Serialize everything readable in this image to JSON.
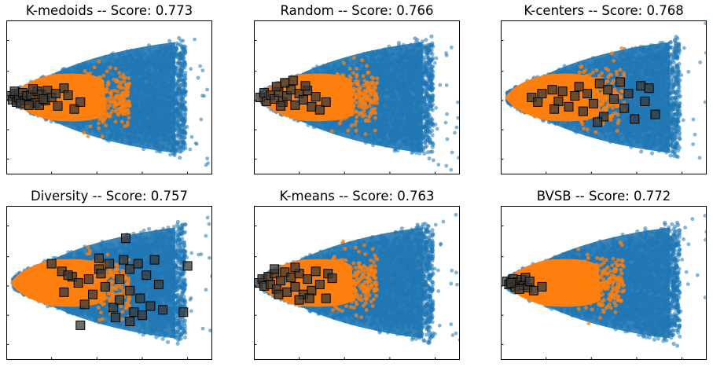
{
  "figure": {
    "background": "#ffffff"
  },
  "colors": {
    "unlabeled": "#1f77b4",
    "region": "#ff7f0e",
    "selected_fill": "#3a3a3a",
    "selected_edge": "#000000"
  },
  "chart_data": [
    {
      "type": "scatter",
      "title": "K-medoids -- Score: 0.773",
      "xlim": [
        0,
        1
      ],
      "ylim": [
        -1,
        1
      ],
      "orange_extent": 0.5,
      "selected": [
        [
          0.02,
          0.02
        ],
        [
          0.03,
          -0.03
        ],
        [
          0.04,
          0.05
        ],
        [
          0.05,
          -0.06
        ],
        [
          0.06,
          0.0
        ],
        [
          0.04,
          0.08
        ],
        [
          0.08,
          0.06
        ],
        [
          0.09,
          -0.04
        ],
        [
          0.1,
          0.02
        ],
        [
          0.07,
          -0.08
        ],
        [
          0.12,
          0.03
        ],
        [
          0.14,
          -0.07
        ],
        [
          0.15,
          0.08
        ],
        [
          0.17,
          0.04
        ],
        [
          0.16,
          -0.1
        ],
        [
          0.19,
          -0.04
        ],
        [
          0.2,
          0.09
        ],
        [
          0.22,
          0.0
        ],
        [
          0.25,
          -0.11
        ],
        [
          0.28,
          0.12
        ],
        [
          0.3,
          0.03
        ],
        [
          0.33,
          -0.15
        ],
        [
          0.24,
          0.05
        ],
        [
          0.18,
          -0.02
        ],
        [
          0.13,
          0.11
        ],
        [
          0.36,
          -0.06
        ],
        [
          0.11,
          -0.1
        ]
      ]
    },
    {
      "type": "scatter",
      "title": "Random -- Score: 0.766",
      "xlim": [
        0,
        1
      ],
      "ylim": [
        -1,
        1
      ],
      "orange_extent": 0.5,
      "selected": [
        [
          0.03,
          0.0
        ],
        [
          0.05,
          0.06
        ],
        [
          0.06,
          -0.05
        ],
        [
          0.08,
          0.03
        ],
        [
          0.1,
          -0.02
        ],
        [
          0.12,
          0.07
        ],
        [
          0.14,
          -0.06
        ],
        [
          0.16,
          0.02
        ],
        [
          0.18,
          0.1
        ],
        [
          0.2,
          -0.1
        ],
        [
          0.22,
          0.05
        ],
        [
          0.24,
          -0.03
        ],
        [
          0.26,
          0.09
        ],
        [
          0.28,
          -0.12
        ],
        [
          0.3,
          0.01
        ],
        [
          0.32,
          -0.16
        ],
        [
          0.25,
          0.15
        ],
        [
          0.19,
          0.22
        ],
        [
          0.15,
          0.19
        ],
        [
          0.11,
          0.14
        ],
        [
          0.35,
          -0.06
        ],
        [
          0.13,
          -0.11
        ]
      ]
    },
    {
      "type": "scatter",
      "title": "K-centers -- Score: 0.768",
      "xlim": [
        0,
        1
      ],
      "ylim": [
        -1,
        1
      ],
      "orange_extent": 0.5,
      "selected": [
        [
          0.15,
          0.0
        ],
        [
          0.2,
          0.05
        ],
        [
          0.18,
          -0.06
        ],
        [
          0.25,
          0.1
        ],
        [
          0.28,
          -0.05
        ],
        [
          0.3,
          0.08
        ],
        [
          0.33,
          -0.12
        ],
        [
          0.36,
          0.02
        ],
        [
          0.38,
          0.14
        ],
        [
          0.4,
          -0.18
        ],
        [
          0.42,
          0.05
        ],
        [
          0.45,
          -0.08
        ],
        [
          0.48,
          0.18
        ],
        [
          0.5,
          -0.25
        ],
        [
          0.52,
          0.1
        ],
        [
          0.55,
          -0.02
        ],
        [
          0.58,
          0.2
        ],
        [
          0.6,
          -0.14
        ],
        [
          0.62,
          0.05
        ],
        [
          0.65,
          -0.28
        ],
        [
          0.68,
          0.15
        ],
        [
          0.7,
          -0.05
        ],
        [
          0.72,
          0.12
        ],
        [
          0.75,
          -0.22
        ],
        [
          0.47,
          -0.32
        ],
        [
          0.26,
          -0.15
        ]
      ]
    },
    {
      "type": "scatter",
      "title": "Diversity -- Score: 0.757",
      "xlim": [
        0,
        1
      ],
      "ylim": [
        -1,
        1
      ],
      "orange_extent": 0.5,
      "selected": [
        [
          0.22,
          0.25
        ],
        [
          0.27,
          0.15
        ],
        [
          0.28,
          -0.12
        ],
        [
          0.32,
          0.08
        ],
        [
          0.35,
          0.0
        ],
        [
          0.38,
          -0.28
        ],
        [
          0.4,
          0.05
        ],
        [
          0.42,
          -0.15
        ],
        [
          0.45,
          0.18
        ],
        [
          0.45,
          0.32
        ],
        [
          0.48,
          -0.05
        ],
        [
          0.5,
          0.25
        ],
        [
          0.52,
          -0.32
        ],
        [
          0.55,
          0.05
        ],
        [
          0.55,
          -0.22
        ],
        [
          0.57,
          0.3
        ],
        [
          0.6,
          -0.1
        ],
        [
          0.6,
          0.18
        ],
        [
          0.62,
          -0.38
        ],
        [
          0.64,
          0.25
        ],
        [
          0.65,
          -0.2
        ],
        [
          0.68,
          0.1
        ],
        [
          0.7,
          -0.3
        ],
        [
          0.72,
          0.3
        ],
        [
          0.74,
          -0.02
        ],
        [
          0.76,
          -0.35
        ],
        [
          0.58,
          0.58
        ],
        [
          0.46,
          0.12
        ],
        [
          0.3,
          0.1
        ],
        [
          0.53,
          -0.45
        ],
        [
          0.36,
          -0.55
        ],
        [
          0.66,
          -0.42
        ],
        [
          0.6,
          -0.5
        ],
        [
          0.88,
          0.22
        ],
        [
          0.86,
          -0.38
        ]
      ]
    },
    {
      "type": "scatter",
      "title": "K-means -- Score: 0.763",
      "xlim": [
        0,
        1
      ],
      "ylim": [
        -1,
        1
      ],
      "orange_extent": 0.5,
      "selected": [
        [
          0.02,
          0.0
        ],
        [
          0.04,
          0.05
        ],
        [
          0.05,
          -0.04
        ],
        [
          0.07,
          0.08
        ],
        [
          0.08,
          -0.02
        ],
        [
          0.1,
          0.12
        ],
        [
          0.11,
          -0.08
        ],
        [
          0.13,
          0.03
        ],
        [
          0.15,
          0.14
        ],
        [
          0.16,
          -0.12
        ],
        [
          0.18,
          0.07
        ],
        [
          0.2,
          -0.05
        ],
        [
          0.22,
          0.12
        ],
        [
          0.24,
          -0.15
        ],
        [
          0.26,
          0.05
        ],
        [
          0.28,
          -0.1
        ],
        [
          0.3,
          0.15
        ],
        [
          0.32,
          -0.02
        ],
        [
          0.35,
          -0.2
        ],
        [
          0.36,
          0.12
        ],
        [
          0.27,
          -0.2
        ],
        [
          0.12,
          -0.15
        ],
        [
          0.2,
          0.2
        ],
        [
          0.1,
          0.18
        ],
        [
          0.38,
          0.06
        ],
        [
          0.22,
          -0.22
        ]
      ]
    },
    {
      "type": "scatter",
      "title": "BVSB -- Score: 0.772",
      "xlim": [
        0,
        1
      ],
      "ylim": [
        -1,
        1
      ],
      "orange_extent": 0.5,
      "selected": [
        [
          0.03,
          0.02
        ],
        [
          0.04,
          -0.02
        ],
        [
          0.06,
          0.05
        ],
        [
          0.07,
          -0.05
        ],
        [
          0.08,
          0.01
        ],
        [
          0.1,
          0.04
        ],
        [
          0.11,
          -0.03
        ],
        [
          0.12,
          0.07
        ],
        [
          0.13,
          -0.06
        ],
        [
          0.14,
          0.02
        ],
        [
          0.16,
          -0.1
        ],
        [
          0.2,
          -0.05
        ],
        [
          0.05,
          0.0
        ],
        [
          0.09,
          -0.08
        ]
      ]
    }
  ]
}
